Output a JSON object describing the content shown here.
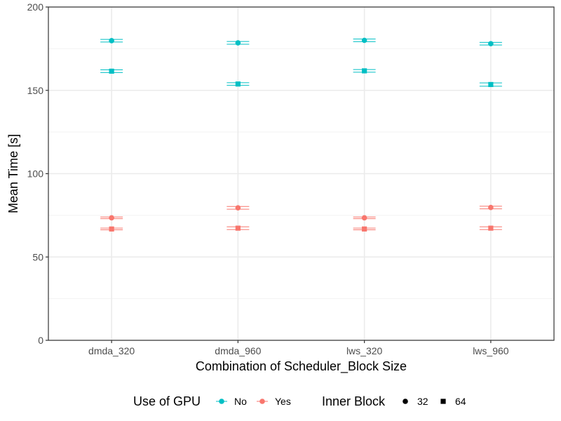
{
  "chart_data": {
    "type": "scatter",
    "title": "",
    "xlabel": "Combination of Scheduler_Block Size",
    "ylabel": "Mean Time [s]",
    "categories": [
      "dmda_320",
      "dmda_960",
      "lws_320",
      "lws_960"
    ],
    "ylim": [
      0,
      200
    ],
    "yticks": [
      0,
      50,
      100,
      150,
      200
    ],
    "grid": true,
    "error_bars": true,
    "legend_position": "bottom",
    "series": [
      {
        "gpu": "No",
        "inner_block": "32",
        "color": "#00BFC4",
        "shape": "circle",
        "values": [
          179.8,
          178.5,
          180.0,
          178.0
        ],
        "err_low": [
          179.0,
          177.7,
          179.2,
          177.2
        ],
        "err_high": [
          180.6,
          179.3,
          180.8,
          178.8
        ]
      },
      {
        "gpu": "No",
        "inner_block": "64",
        "color": "#00BFC4",
        "shape": "square",
        "values": [
          161.5,
          153.8,
          161.7,
          153.5
        ],
        "err_low": [
          160.7,
          153.0,
          160.9,
          152.5
        ],
        "err_high": [
          162.3,
          154.6,
          162.5,
          154.5
        ]
      },
      {
        "gpu": "Yes",
        "inner_block": "32",
        "color": "#F8766D",
        "shape": "circle",
        "values": [
          73.5,
          79.5,
          73.5,
          79.7
        ],
        "err_low": [
          73.0,
          78.7,
          73.0,
          78.9
        ],
        "err_high": [
          74.0,
          80.3,
          74.0,
          80.5
        ]
      },
      {
        "gpu": "Yes",
        "inner_block": "64",
        "color": "#F8766D",
        "shape": "square",
        "values": [
          66.8,
          67.3,
          66.8,
          67.3
        ],
        "err_low": [
          66.3,
          66.5,
          66.3,
          66.5
        ],
        "err_high": [
          67.3,
          68.1,
          67.3,
          68.1
        ]
      }
    ],
    "legend": {
      "gpu_title": "Use of GPU",
      "gpu_items": [
        {
          "label": "No",
          "color": "#00BFC4"
        },
        {
          "label": "Yes",
          "color": "#F8766D"
        }
      ],
      "block_title": "Inner Block",
      "block_items": [
        {
          "label": "32",
          "shape": "circle"
        },
        {
          "label": "64",
          "shape": "square"
        }
      ]
    }
  }
}
